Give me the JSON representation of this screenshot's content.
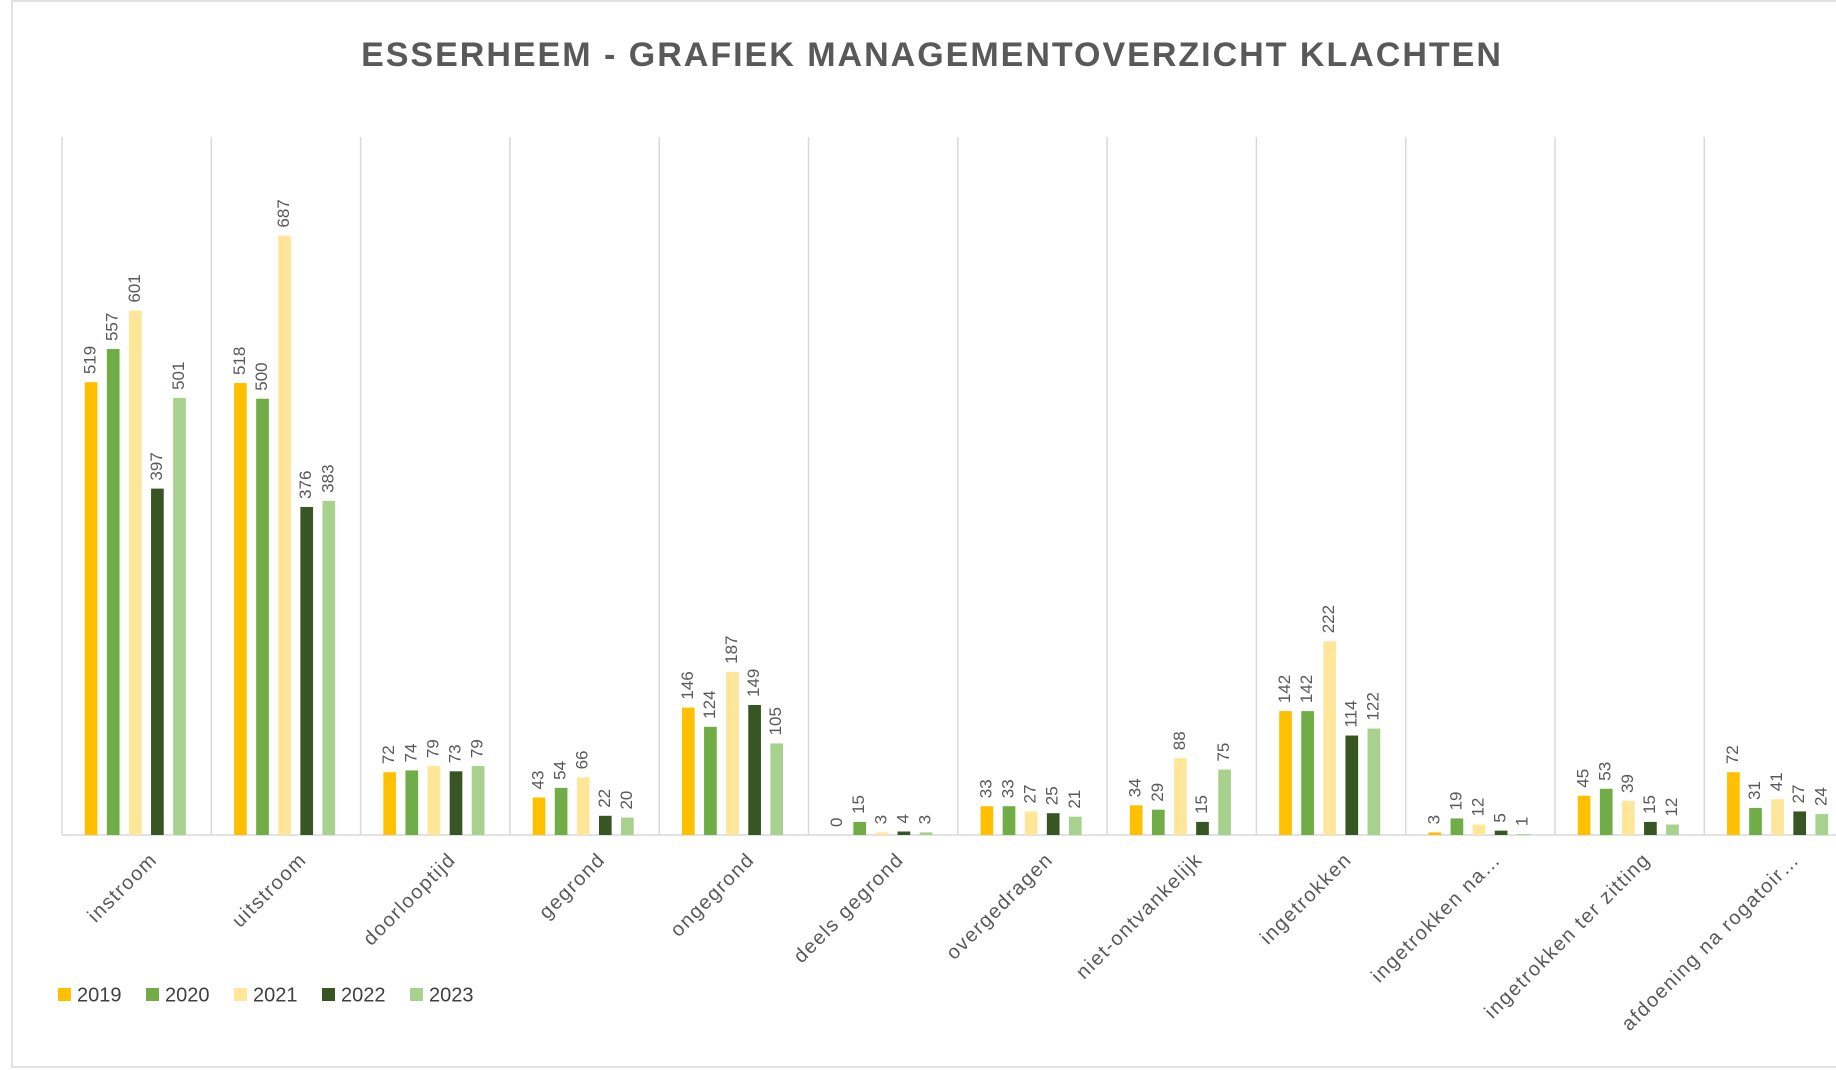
{
  "chart_data": {
    "type": "bar",
    "title": "ESSERHEEM - GRAFIEK MANAGEMENTOVERZICHT KLACHTEN",
    "categories": [
      "instroom",
      "uitstroom",
      "doorlooptijd",
      "gegrond",
      "ongegrond",
      "deels gegrond",
      "overgedragen",
      "niet-ontvankelijk",
      "ingetrokken",
      "ingetrokken na…",
      "ingetrokken ter zitting",
      "afdoening na rogatoir…"
    ],
    "series": [
      {
        "name": "2019",
        "color": "#ffc000",
        "values": [
          519,
          518,
          72,
          43,
          146,
          0,
          33,
          34,
          142,
          3,
          45,
          72
        ]
      },
      {
        "name": "2020",
        "color": "#70ad47",
        "values": [
          557,
          500,
          74,
          54,
          124,
          15,
          33,
          29,
          142,
          19,
          53,
          31
        ]
      },
      {
        "name": "2021",
        "color": "#ffe699",
        "values": [
          601,
          687,
          79,
          66,
          187,
          3,
          27,
          88,
          222,
          12,
          39,
          41
        ]
      },
      {
        "name": "2022",
        "color": "#375623",
        "values": [
          397,
          376,
          73,
          22,
          149,
          4,
          25,
          15,
          114,
          5,
          15,
          27
        ]
      },
      {
        "name": "2023",
        "color": "#a9d18e",
        "values": [
          501,
          383,
          79,
          20,
          105,
          3,
          21,
          75,
          122,
          1,
          12,
          24
        ]
      }
    ],
    "ylim": [
      0,
      800
    ],
    "legend": "bottom-left"
  }
}
